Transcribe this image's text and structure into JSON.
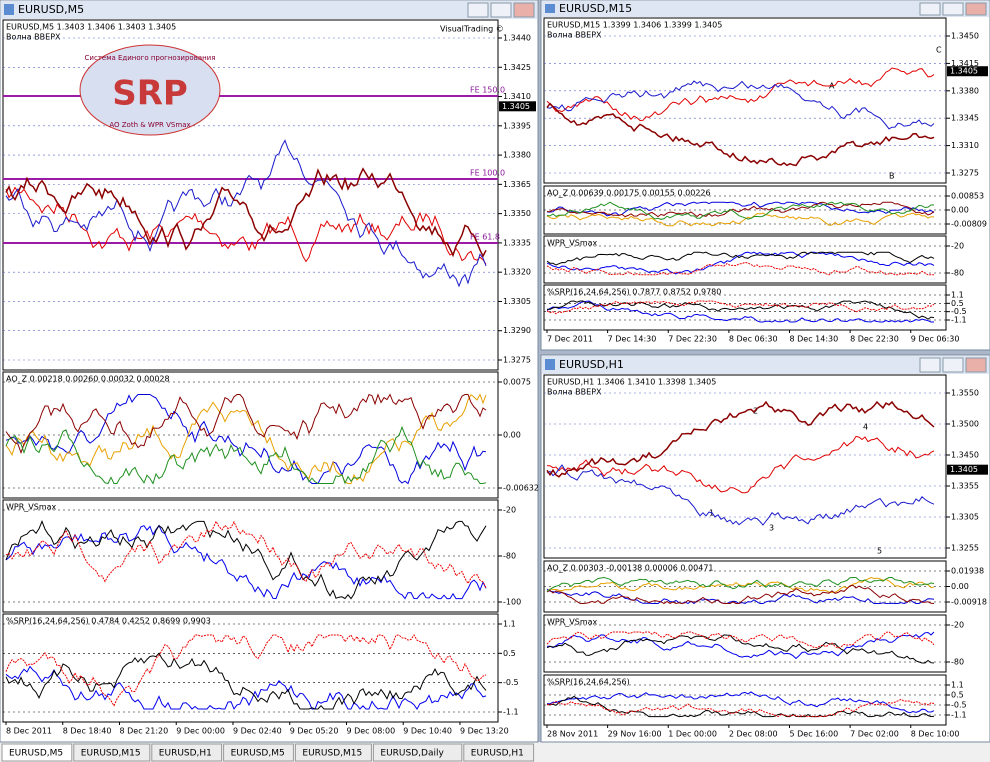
{
  "windows": [
    {
      "title": "EURUSD,M5",
      "panes": [
        {
          "header": "EURUSD,M5  1.3403 1.3406 1.3403 1.3405",
          "subheader": "Волна BBEPX",
          "axis": [
            "1.3440",
            "1.3425",
            "1.3410",
            "1.3395",
            "1.3380",
            "1.3365",
            "1.3350",
            "1.3335",
            "1.3320",
            "1.3305",
            "1.3290",
            "1.3275"
          ],
          "current": "1.3405",
          "notes": [
            "VisualTrading ©",
            "FE 150.0",
            "FE 100.0",
            "FE 61.8"
          ]
        },
        {
          "header": "AO_Z 0.00218 0.00260 0.00032 0.00028",
          "axis": [
            "0.0075",
            "0.00",
            "-0.00632"
          ]
        },
        {
          "header": "WPR_VSmax",
          "axis": [
            "-20",
            "-80",
            "-100"
          ]
        },
        {
          "header": "%SRP(16,24,64,256) 0.4784 0.4252 0.8699 0.9903",
          "axis": [
            "1.1",
            "0.5",
            "-0.5",
            "-1.1"
          ]
        }
      ],
      "times": [
        "8 Dec 2011",
        "8 Dec 18:40",
        "8 Dec 21:20",
        "9 Dec 00:00",
        "9 Dec 02:40",
        "9 Dec 05:20",
        "9 Dec 08:00",
        "9 Dec 10:40",
        "9 Dec 13:20"
      ],
      "logo": {
        "title": "SRP",
        "top": "Система Единого прогнозирования",
        "bottom": "AO Zoth & WPR VSmax"
      }
    },
    {
      "title": "EURUSD,M15",
      "panes": [
        {
          "header": "EURUSD,M15  1.3399 1.3406 1.3399 1.3405",
          "subheader": "Волна BBEPX",
          "axis": [
            "1.3450",
            "1.3415",
            "1.3380",
            "1.3345",
            "1.3310",
            "1.3275"
          ],
          "current": "1.3405",
          "notes": [
            "A",
            "B",
            "C"
          ]
        },
        {
          "header": "AO_Z 0.00639 0.00175 0.00155 0.00226",
          "axis": [
            "0.00853",
            "0.00",
            "-0.00809"
          ]
        },
        {
          "header": "WPR_VSmax",
          "axis": [
            "-20",
            "-80"
          ]
        },
        {
          "header": "%SRP(16,24,64,256) 0.7877 0.8752 0.9780",
          "axis": [
            "1.1",
            "0.5",
            "-0.5",
            "-1.1"
          ]
        }
      ],
      "times": [
        "7 Dec 2011",
        "7 Dec 14:30",
        "7 Dec 22:30",
        "8 Dec 06:30",
        "8 Dec 14:30",
        "8 Dec 22:30",
        "9 Dec 06:30"
      ]
    },
    {
      "title": "EURUSD,H1",
      "panes": [
        {
          "header": "EURUSD,H1  1.3406 1.3410 1.3398 1.3405",
          "subheader": "Волна BBEPX",
          "axis": [
            "1.3550",
            "1.3500",
            "1.3450",
            "1.3355",
            "1.3305",
            "1.3255"
          ],
          "current": "1.3405",
          "notes": [
            "1",
            "2",
            "3",
            "4",
            "5"
          ]
        },
        {
          "header": "AO_Z 0.00303 -0.00138 0.00006 0.00471",
          "axis": [
            "0.01938",
            "0.00",
            "-0.00918"
          ]
        },
        {
          "header": "WPR_VSmax",
          "axis": [
            "-20",
            "-80"
          ]
        },
        {
          "header": "%SRP(16,24,64,256)",
          "axis": [
            "1.1",
            "0.5",
            "-0.5",
            "-1.1"
          ]
        }
      ],
      "times": [
        "28 Nov 2011",
        "29 Nov 16:00",
        "1 Dec 00:00",
        "2 Dec 08:00",
        "5 Dec 16:00",
        "7 Dec 02:00",
        "8 Dec 10:00"
      ]
    }
  ],
  "tabs": [
    "EURUSD,M5",
    "EURUSD,M15",
    "EURUSD,H1",
    "EURUSD,M5",
    "EURUSD,M15",
    "EURUSD,Daily",
    "EURUSD,H1"
  ]
}
